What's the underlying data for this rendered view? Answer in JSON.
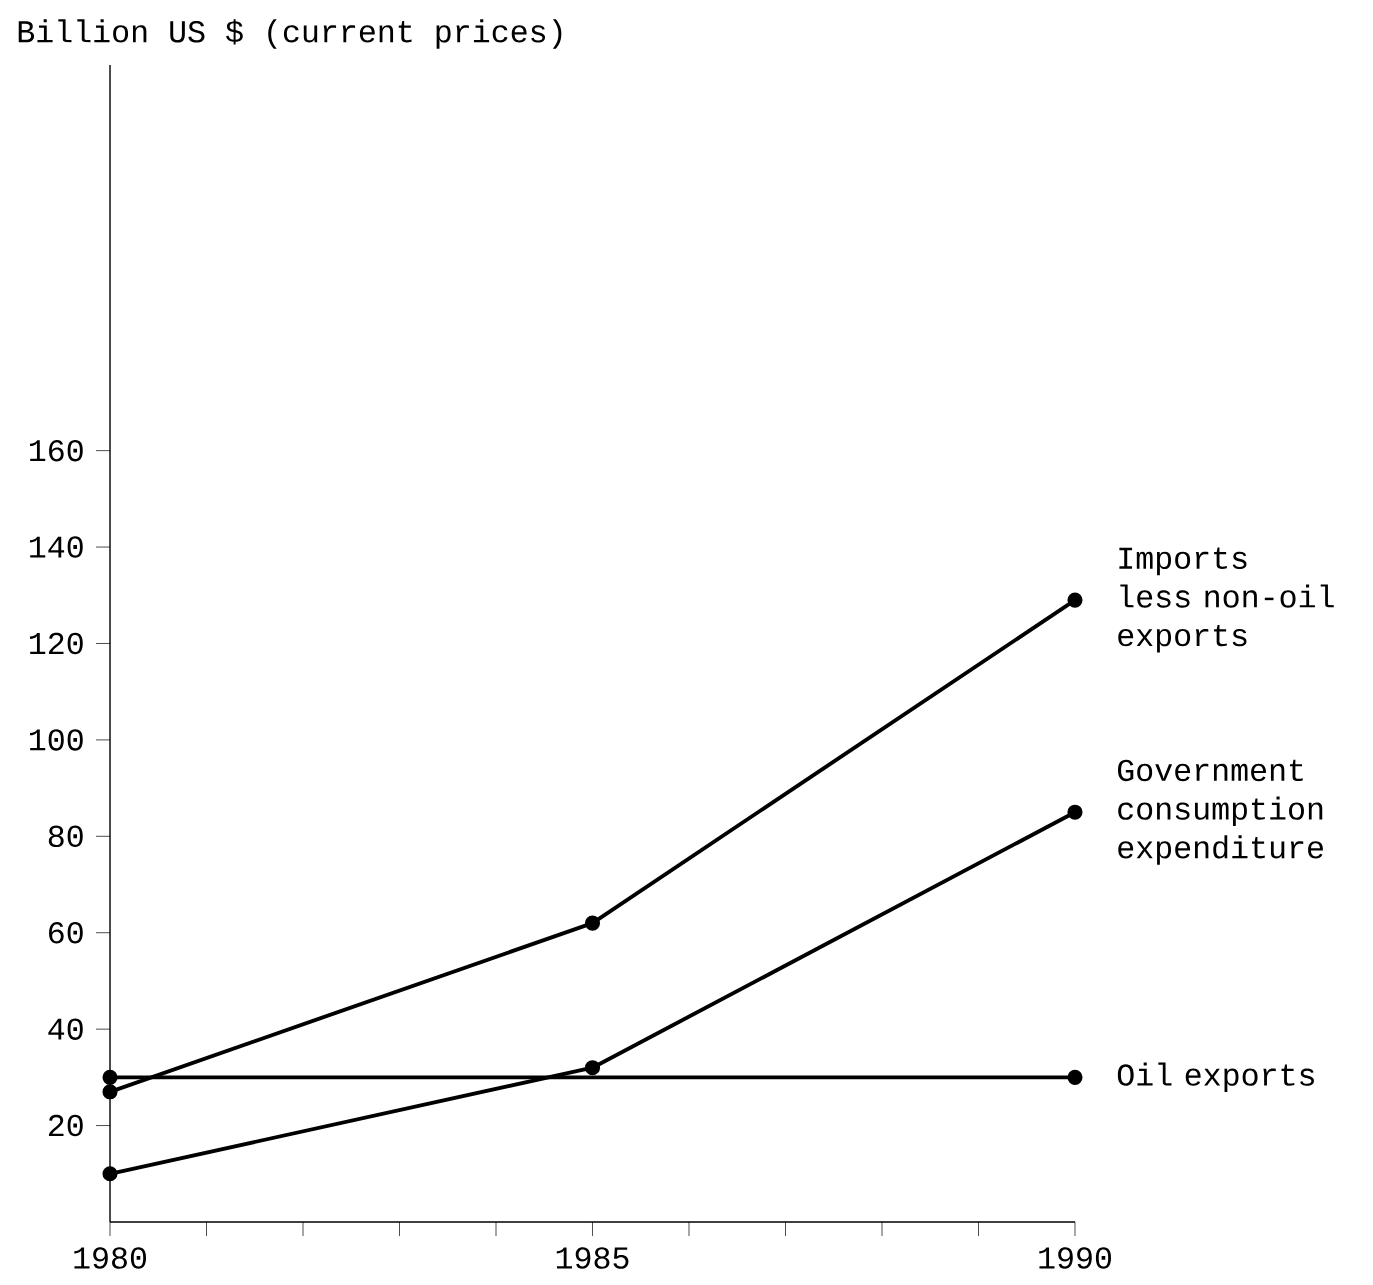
{
  "chart_data": {
    "type": "line",
    "ylabel": "Billion US $ (current prices)",
    "xlim": [
      1980,
      1990
    ],
    "ylim": [
      0,
      240
    ],
    "xticks": [
      1980,
      {
        "value": 1981,
        "label": null
      },
      {
        "value": 1982,
        "label": null
      },
      {
        "value": 1983,
        "label": null
      },
      {
        "value": 1984,
        "label": null
      },
      1985,
      {
        "value": 1986,
        "label": null
      },
      {
        "value": 1987,
        "label": null
      },
      {
        "value": 1988,
        "label": null
      },
      {
        "value": 1989,
        "label": null
      },
      1990
    ],
    "yticks": [
      20,
      40,
      60,
      80,
      100,
      120,
      140,
      160
    ],
    "marker": "circle",
    "line_style": "solid",
    "series": [
      {
        "name": "Imports less non-oil exports",
        "color": "#000000",
        "x": [
          1980,
          1985,
          1990
        ],
        "values": [
          27,
          62,
          129
        ]
      },
      {
        "name": "Government consumption expenditure",
        "color": "#000000",
        "x": [
          1980,
          1985,
          1990
        ],
        "values": [
          10,
          32,
          85
        ]
      },
      {
        "name": "Oil exports",
        "color": "#000000",
        "x": [
          1980,
          1990
        ],
        "values": [
          30,
          30
        ]
      }
    ]
  }
}
